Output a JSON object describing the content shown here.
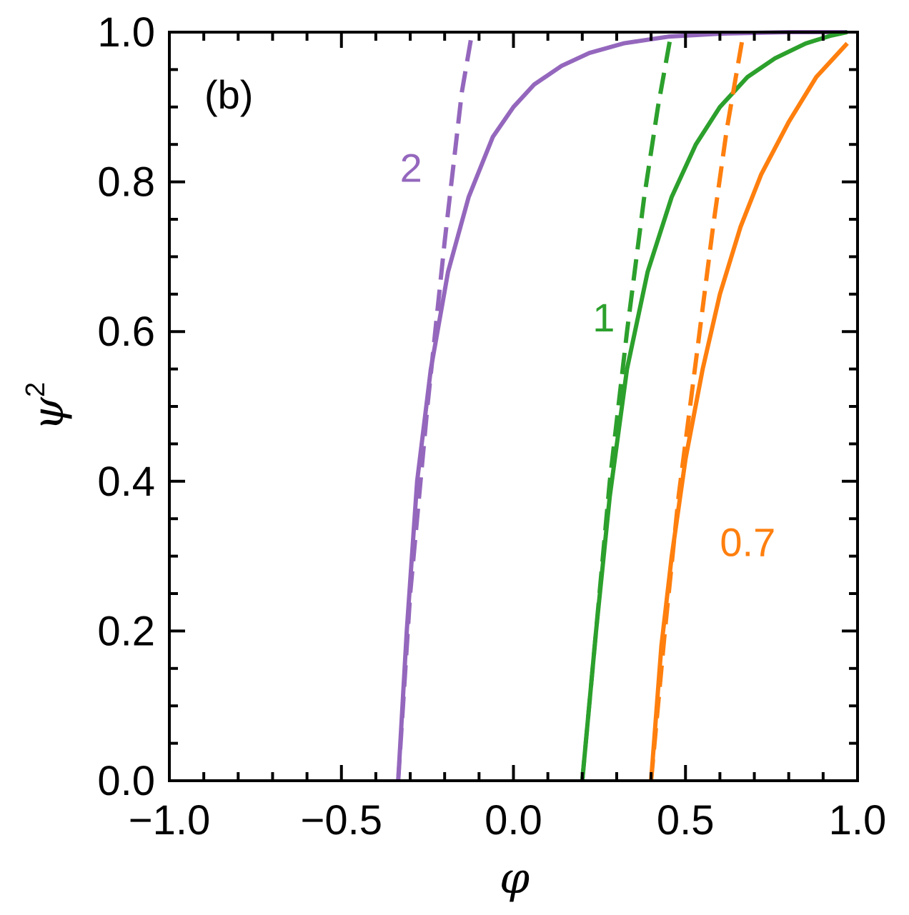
{
  "chart_data": {
    "type": "line",
    "panel_label": "(b)",
    "xlabel": "φ",
    "ylabel": "ψ",
    "ylabel_superscript": "2",
    "xlim": [
      -1.0,
      1.0
    ],
    "ylim": [
      0.0,
      1.0
    ],
    "x_ticks": [
      -1.0,
      -0.5,
      0.0,
      0.5,
      1.0
    ],
    "x_tick_labels": [
      "−1.0",
      "−0.5",
      "0.0",
      "0.5",
      "1.0"
    ],
    "y_ticks": [
      0.0,
      0.2,
      0.4,
      0.6,
      0.8,
      1.0
    ],
    "y_tick_labels": [
      "0.0",
      "0.2",
      "0.4",
      "0.6",
      "0.8",
      "1.0"
    ],
    "grid": false,
    "series": [
      {
        "label": "2",
        "color": "#9467bd",
        "label_at": [
          -0.33,
          0.8
        ],
        "solid": {
          "x": [
            -0.335,
            -0.31,
            -0.28,
            -0.24,
            -0.19,
            -0.13,
            -0.06,
            0.0,
            0.06,
            0.14,
            0.22,
            0.32,
            0.45,
            0.6,
            0.8,
            0.97
          ],
          "y": [
            0.0,
            0.2,
            0.4,
            0.55,
            0.68,
            0.78,
            0.86,
            0.9,
            0.93,
            0.955,
            0.972,
            0.985,
            0.994,
            0.998,
            1.0,
            1.0
          ]
        },
        "dashed": {
          "x": [
            -0.335,
            -0.3,
            -0.25,
            -0.2,
            -0.15,
            -0.12
          ],
          "y": [
            0.0,
            0.25,
            0.5,
            0.72,
            0.92,
            1.0
          ]
        }
      },
      {
        "label": "1",
        "color": "#2ca02c",
        "label_at": [
          0.23,
          0.6
        ],
        "solid": {
          "x": [
            0.2,
            0.24,
            0.28,
            0.33,
            0.39,
            0.46,
            0.53,
            0.6,
            0.68,
            0.76,
            0.85,
            0.92,
            0.97
          ],
          "y": [
            0.0,
            0.2,
            0.38,
            0.55,
            0.68,
            0.78,
            0.85,
            0.9,
            0.94,
            0.965,
            0.985,
            0.995,
            1.0
          ]
        },
        "dashed": {
          "x": [
            0.2,
            0.24,
            0.28,
            0.33,
            0.38,
            0.42,
            0.455
          ],
          "y": [
            0.0,
            0.2,
            0.4,
            0.6,
            0.78,
            0.9,
            0.99
          ]
        }
      },
      {
        "label": "0.7",
        "color": "#ff7f0e",
        "label_at": [
          0.6,
          0.3
        ],
        "solid": {
          "x": [
            0.4,
            0.43,
            0.46,
            0.5,
            0.55,
            0.6,
            0.66,
            0.72,
            0.8,
            0.88,
            0.93,
            0.97
          ],
          "y": [
            0.0,
            0.18,
            0.3,
            0.43,
            0.55,
            0.65,
            0.74,
            0.81,
            0.88,
            0.94,
            0.965,
            0.985
          ]
        },
        "dashed": {
          "x": [
            0.4,
            0.44,
            0.48,
            0.53,
            0.58,
            0.62,
            0.665
          ],
          "y": [
            0.0,
            0.2,
            0.38,
            0.56,
            0.74,
            0.87,
            0.99
          ]
        }
      }
    ]
  }
}
